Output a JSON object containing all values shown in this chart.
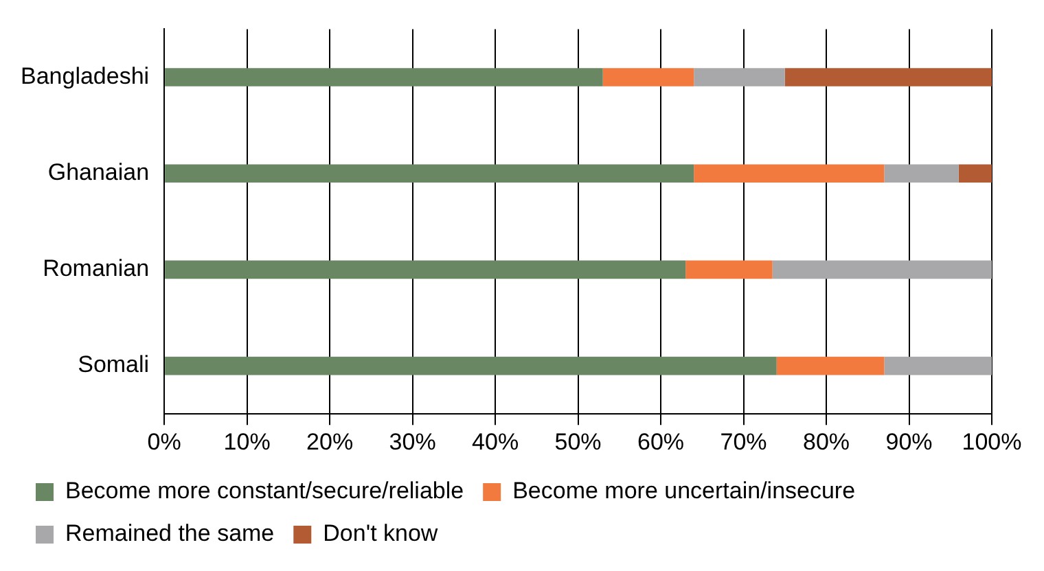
{
  "chart_data": {
    "type": "bar",
    "orientation": "horizontal",
    "stacked": true,
    "categories": [
      "Bangladeshi",
      "Ghanaian",
      "Romanian",
      "Somali"
    ],
    "series": [
      {
        "name": "Become more constant/secure/reliable",
        "color": "#6a8763",
        "values": [
          53,
          64,
          63,
          74
        ]
      },
      {
        "name": "Become more uncertain/insecure",
        "color": "#f27a3e",
        "values": [
          11,
          23,
          10.5,
          13
        ]
      },
      {
        "name": "Remained the same",
        "color": "#a8a8aa",
        "values": [
          11,
          9,
          26.5,
          13
        ]
      },
      {
        "name": "Don't know",
        "color": "#b35c33",
        "values": [
          25,
          4,
          null,
          null
        ]
      }
    ],
    "xlim": [
      0,
      100
    ],
    "xticks": [
      {
        "value": 0,
        "label": "0%"
      },
      {
        "value": 10,
        "label": "10%"
      },
      {
        "value": 20,
        "label": "20%"
      },
      {
        "value": 30,
        "label": "30%"
      },
      {
        "value": 40,
        "label": "40%"
      },
      {
        "value": 50,
        "label": "50%"
      },
      {
        "value": 60,
        "label": "60%"
      },
      {
        "value": 70,
        "label": "70%"
      },
      {
        "value": 80,
        "label": "80%"
      },
      {
        "value": 90,
        "label": "90%"
      },
      {
        "value": 100,
        "label": "100%"
      }
    ],
    "grid": "x",
    "legend": "bottom"
  }
}
